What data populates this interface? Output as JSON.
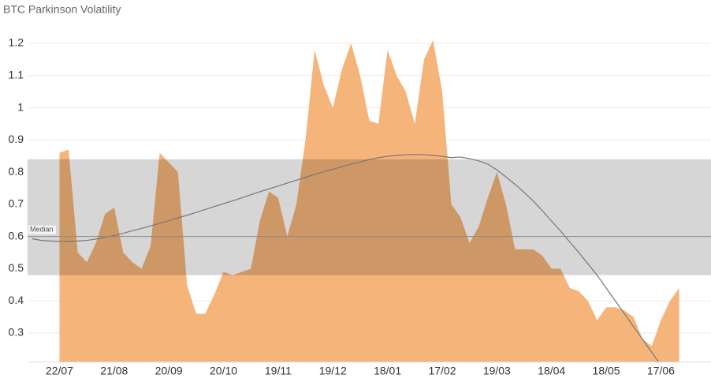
{
  "chart_data": {
    "type": "area",
    "title": "BTC Parkinson Volatility",
    "categories": [
      null,
      null,
      null,
      "22/07",
      null,
      null,
      null,
      null,
      null,
      "21/08",
      null,
      null,
      null,
      null,
      null,
      "20/09",
      null,
      null,
      null,
      null,
      null,
      "20/10",
      null,
      null,
      null,
      null,
      null,
      "19/11",
      null,
      null,
      null,
      null,
      null,
      "19/12",
      null,
      null,
      null,
      null,
      null,
      "18/01",
      null,
      null,
      null,
      null,
      null,
      "17/02",
      null,
      null,
      null,
      null,
      null,
      "19/03",
      null,
      null,
      null,
      null,
      null,
      "18/04",
      null,
      null,
      null,
      null,
      null,
      "18/05",
      null,
      null,
      null,
      null,
      null,
      "17/06",
      null,
      null,
      null,
      null,
      null
    ],
    "series": [
      {
        "color": "#f5b47a",
        "values": [
          null,
          null,
          null,
          0.86,
          0.87,
          0.55,
          0.52,
          0.58,
          0.67,
          0.69,
          0.55,
          0.52,
          0.5,
          0.57,
          0.86,
          0.83,
          0.8,
          0.45,
          0.36,
          0.36,
          0.42,
          0.49,
          0.48,
          0.49,
          0.5,
          0.65,
          0.74,
          0.72,
          0.6,
          0.7,
          0.9,
          1.18,
          1.07,
          1.0,
          1.12,
          1.2,
          1.1,
          0.96,
          0.95,
          1.18,
          1.1,
          1.05,
          0.95,
          1.15,
          1.21,
          1.05,
          0.7,
          0.66,
          0.58,
          0.63,
          0.72,
          0.8,
          0.7,
          0.56,
          0.56,
          0.56,
          0.54,
          0.5,
          0.5,
          0.44,
          0.43,
          0.4,
          0.34,
          0.38,
          0.38,
          0.37,
          0.35,
          0.28,
          0.26,
          0.34,
          0.4,
          0.44,
          null,
          null,
          null
        ]
      }
    ],
    "trend": {
      "color": "#777777",
      "values": [
        0.593,
        0.588,
        0.586,
        0.585,
        0.585,
        0.586,
        0.588,
        0.592,
        0.598,
        0.603,
        0.61,
        0.618,
        0.625,
        0.633,
        0.641,
        0.649,
        0.658,
        0.666,
        0.675,
        0.684,
        0.693,
        0.702,
        0.711,
        0.72,
        0.73,
        0.739,
        0.748,
        0.757,
        0.766,
        0.775,
        0.784,
        0.793,
        0.801,
        0.809,
        0.817,
        0.825,
        0.832,
        0.839,
        0.845,
        0.849,
        0.852,
        0.854,
        0.855,
        0.854,
        0.852,
        0.849,
        0.845,
        0.847,
        0.842,
        0.835,
        0.825,
        0.807,
        0.785,
        0.762,
        0.737,
        0.71,
        0.68,
        0.648,
        0.617,
        0.583,
        0.55,
        0.515,
        0.48,
        0.44,
        0.4,
        0.36,
        0.32,
        0.28,
        0.24,
        0.2,
        null,
        null,
        null,
        null,
        null
      ]
    },
    "band": [
      0.48,
      0.84
    ],
    "band_color": "#d6d6d6",
    "reference_line": {
      "label": "Median",
      "value": 0.6,
      "color": "#8a8a8a"
    },
    "ylim": [
      0.21,
      1.25
    ],
    "yticks": [
      0.3,
      0.4,
      0.5,
      0.6,
      0.7,
      0.8,
      0.9,
      1.0,
      1.1,
      1.2
    ],
    "grid": true
  }
}
